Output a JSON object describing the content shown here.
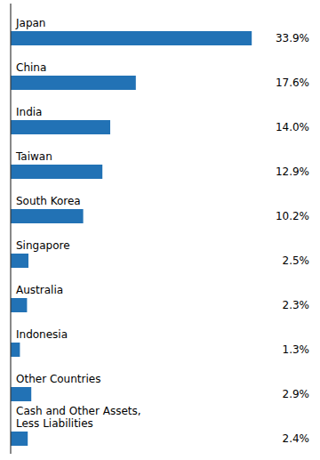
{
  "chart_data": {
    "type": "bar",
    "orientation": "horizontal",
    "categories": [
      "Japan",
      "China",
      "India",
      "Taiwan",
      "South Korea",
      "Singapore",
      "Australia",
      "Indonesia",
      "Other Countries",
      "Cash and Other Assets,\nLess Liabilities"
    ],
    "values": [
      33.9,
      17.6,
      14.0,
      12.9,
      10.2,
      2.5,
      2.3,
      1.3,
      2.9,
      2.4
    ],
    "value_labels": [
      "33.9%",
      "17.6%",
      "14.0%",
      "12.9%",
      "10.2%",
      "2.5%",
      "2.3%",
      "1.3%",
      "2.9%",
      "2.4%"
    ],
    "color": "#2272B5",
    "xlim": [
      0,
      42
    ],
    "data_labels": true,
    "tick_labels": false,
    "grid": false
  }
}
